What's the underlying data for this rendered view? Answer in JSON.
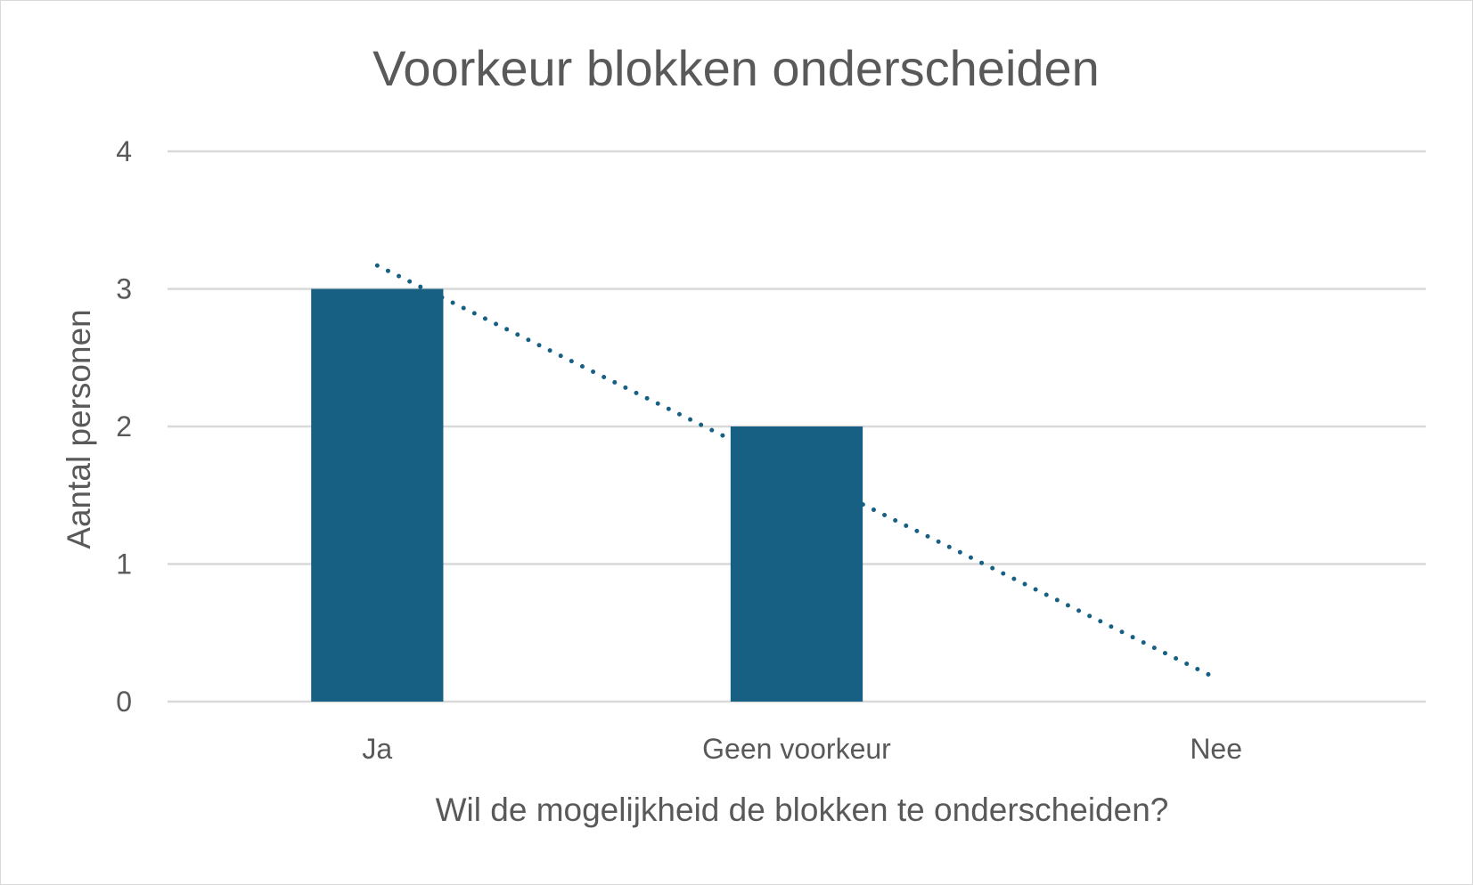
{
  "chart_data": {
    "type": "bar",
    "title": "Voorkeur blokken onderscheiden",
    "xlabel": "Wil de mogelijkheid de blokken te onderscheiden?",
    "ylabel": "Aantal personen",
    "categories": [
      "Ja",
      "Geen voorkeur",
      "Nee"
    ],
    "values": [
      3,
      2,
      0
    ],
    "ylim": [
      0,
      4
    ],
    "yticks": [
      "0",
      "1",
      "2",
      "3",
      "4"
    ],
    "grid": true,
    "legend": "none",
    "trendline": {
      "type": "linear",
      "style": "dotted",
      "values": [
        3.17,
        1.67,
        0.17
      ]
    },
    "colors": {
      "bar": "#176083",
      "trendline": "#176083",
      "grid": "#d9d9d9",
      "text": "#595959"
    }
  }
}
